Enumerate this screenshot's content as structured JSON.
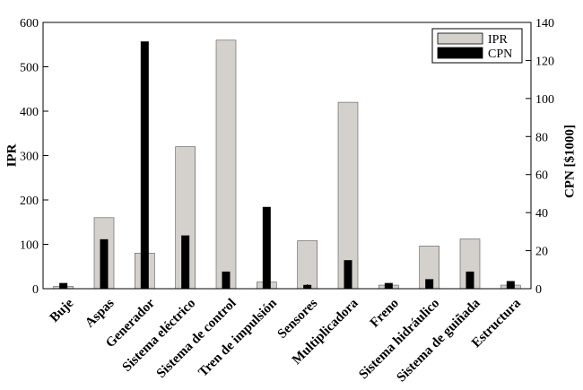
{
  "chart_data": {
    "type": "bar",
    "categories": [
      "Buje",
      "Aspas",
      "Generador",
      "Sistema eléctrico",
      "Sistema de control",
      "Tren de impulsión",
      "Sensores",
      "Multiplicadora",
      "Freno",
      "Sistema hidráulico",
      "Sistema de guiñada",
      "Estructura"
    ],
    "series": [
      {
        "name": "IPR",
        "axis": "left",
        "color": "#d4d0cb",
        "values": [
          5,
          160,
          80,
          320,
          560,
          15,
          108,
          420,
          8,
          96,
          112,
          8
        ]
      },
      {
        "name": "CPN",
        "axis": "right",
        "color": "#000000",
        "values": [
          3,
          26,
          130,
          28,
          9,
          43,
          2,
          15,
          3,
          5,
          9,
          4
        ]
      }
    ],
    "ylabel": "IPR",
    "ylabel_right": "CPN [$1000]",
    "ylim": [
      0,
      600
    ],
    "ylim_right": [
      0,
      140
    ],
    "yticks": [
      "0",
      "100",
      "200",
      "300",
      "400",
      "500",
      "600"
    ],
    "yticks_right": [
      "0",
      "20",
      "40",
      "60",
      "80",
      "100",
      "120",
      "140"
    ],
    "legend_position": "top-right",
    "grid": false
  }
}
